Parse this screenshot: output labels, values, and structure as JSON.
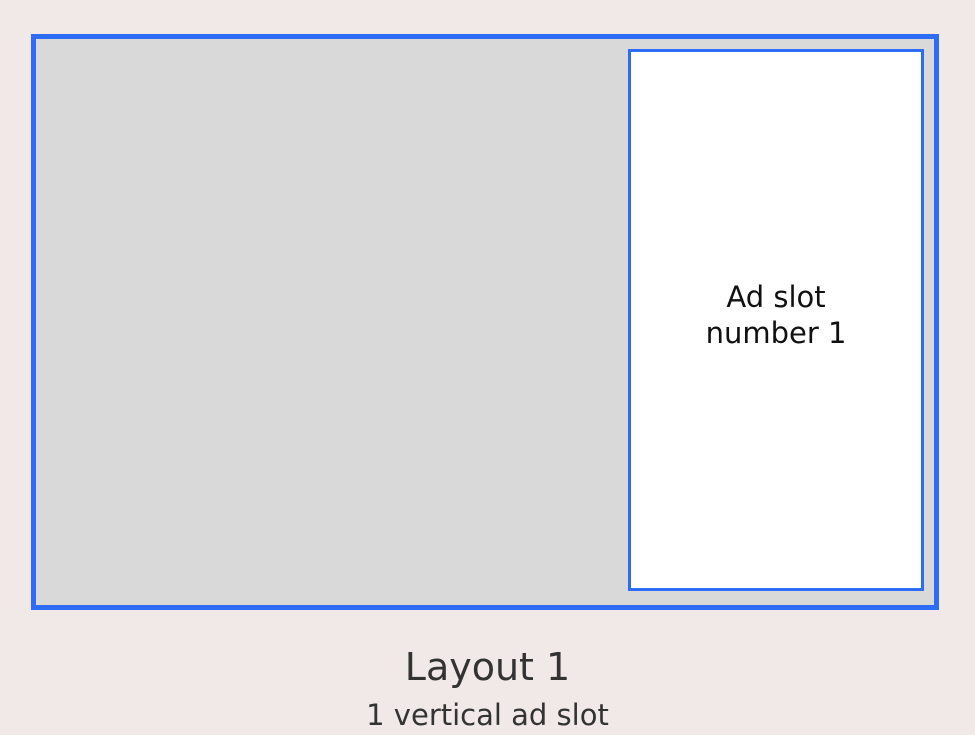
{
  "diagram": {
    "ad_slot": {
      "line1": "Ad slot",
      "line2": "number 1"
    },
    "caption": {
      "title": "Layout 1",
      "subtitle": "1 vertical ad slot"
    }
  },
  "colors": {
    "background": "#f1e9e7",
    "frame_border": "#2f6cf6",
    "frame_fill": "#d9d9d9",
    "ad_slot_fill": "#ffffff"
  }
}
